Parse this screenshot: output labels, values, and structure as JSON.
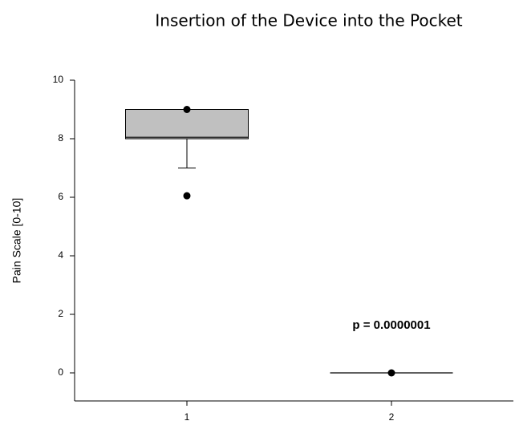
{
  "chart_data": {
    "type": "box",
    "title": "Insertion of the Device into the Pocket",
    "y_label": "Pain Scale [0-10]",
    "categories": [
      "1",
      "2"
    ],
    "boxes": [
      {
        "q1": 8,
        "median": 8.05,
        "q3": 9,
        "whisker_low": 7,
        "whisker_high": 9,
        "outliers": [
          9,
          6.05
        ]
      },
      {
        "q1": 0,
        "median": 0,
        "q3": 0,
        "whisker_low": 0,
        "whisker_high": 0,
        "outliers": [
          0
        ]
      }
    ],
    "color": "#c0c0c0",
    "ylim": [
      -1,
      10
    ],
    "yticks": [
      0,
      2,
      4,
      6,
      8,
      10
    ],
    "annotations": [
      "p = 0.0000001"
    ]
  }
}
